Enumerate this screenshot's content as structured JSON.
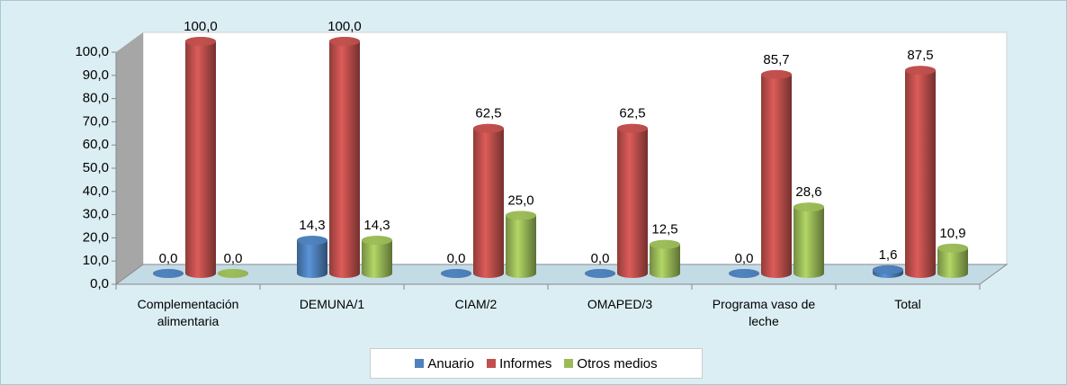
{
  "chart_data": {
    "type": "bar3d",
    "categories": [
      "Complementación alimentaria",
      "DEMUNA/1",
      "CIAM/2",
      "OMAPED/3",
      "Programa vaso de leche",
      "Total"
    ],
    "series": [
      {
        "name": "Anuario",
        "color": "#4f81bd",
        "values": [
          0,
          14.3,
          0,
          0,
          0,
          1.6
        ],
        "value_labels": [
          "0,0",
          "14,3",
          "0,0",
          "0,0",
          "0,0",
          "1,6"
        ]
      },
      {
        "name": "Informes",
        "color": "#c0504d",
        "values": [
          100,
          100,
          62.5,
          62.5,
          85.7,
          87.5
        ],
        "value_labels": [
          "100,0",
          "100,0",
          "62,5",
          "62,5",
          "85,7",
          "87,5"
        ]
      },
      {
        "name": "Otros medios",
        "color": "#9bbb59",
        "values": [
          0,
          14.3,
          25,
          12.5,
          28.6,
          10.9
        ],
        "value_labels": [
          "0,0",
          "14,3",
          "25,0",
          "12,5",
          "28,6",
          "10,9"
        ]
      }
    ],
    "ylim": [
      0,
      100
    ],
    "yticks": [
      {
        "value": 0,
        "label": "0,0"
      },
      {
        "value": 10,
        "label": "10,0"
      },
      {
        "value": 20,
        "label": "20,0"
      },
      {
        "value": 30,
        "label": "30,0"
      },
      {
        "value": 40,
        "label": "40,0"
      },
      {
        "value": 50,
        "label": "50,0"
      },
      {
        "value": 60,
        "label": "60,0"
      },
      {
        "value": 70,
        "label": "70,0"
      },
      {
        "value": 80,
        "label": "80,0"
      },
      {
        "value": 90,
        "label": "90,0"
      },
      {
        "value": 100,
        "label": "100,0"
      }
    ],
    "grid": false,
    "legend": "bottom"
  }
}
